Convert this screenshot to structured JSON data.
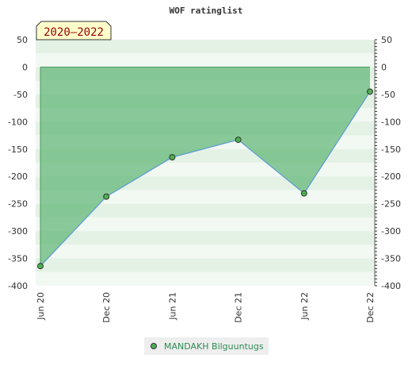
{
  "chart_data": {
    "type": "area",
    "title": "WOF ratinglist",
    "badge": "2020–2022",
    "x_labels": [
      "Jun 20",
      "Dec 20",
      "Jun 21",
      "Dec 21",
      "Jun 22",
      "Dec 22"
    ],
    "y_ticks": [
      "50",
      "0",
      "-50",
      "-100",
      "-150",
      "-200",
      "-250",
      "-300",
      "-350",
      "-400"
    ],
    "y_tick_values": [
      50,
      0,
      -50,
      -100,
      -150,
      -200,
      -250,
      -300,
      -350,
      -400
    ],
    "ylim": [
      -400,
      50
    ],
    "series": [
      {
        "name": "MANDAKH Bilguuntugs",
        "values": [
          -364,
          -237,
          -165,
          -133,
          -231,
          -45
        ]
      }
    ],
    "legend_position": "bottom-center",
    "grid": true,
    "colors": {
      "area": "#5fb574",
      "line": "#5a9bd4",
      "marker_fill": "#4caf50",
      "marker_stroke": "#333333",
      "legend_text": "#2e8b57",
      "badge_bg": "#ffffcc",
      "badge_text": "#990000"
    }
  }
}
